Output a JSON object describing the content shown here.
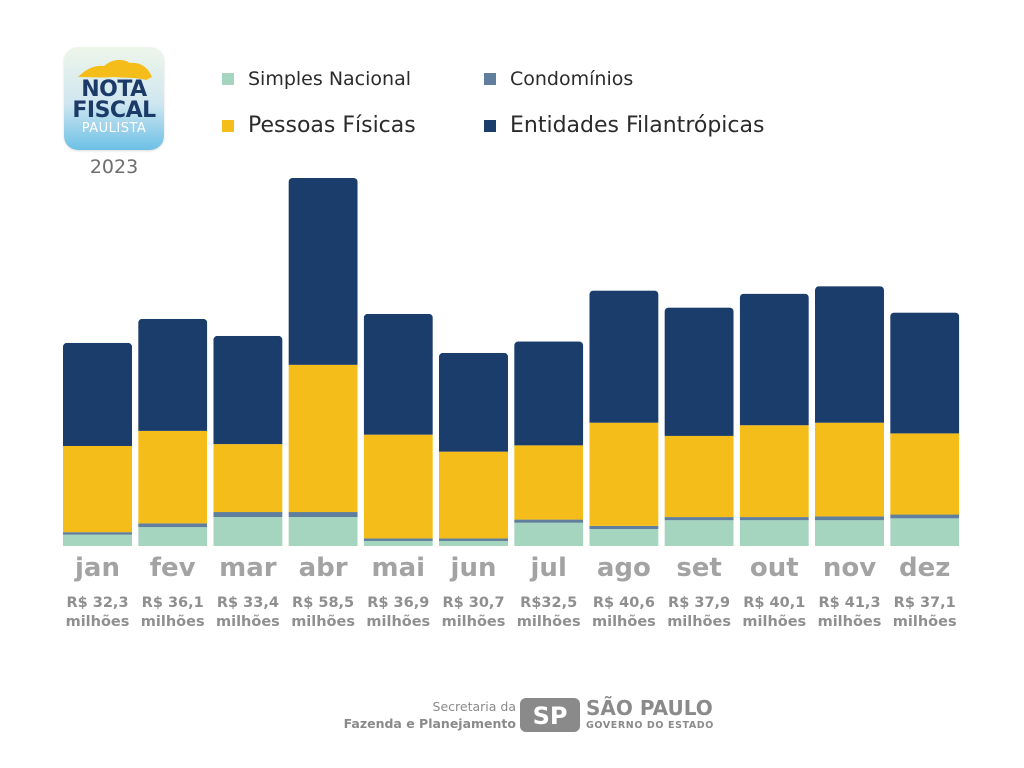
{
  "logo": {
    "line1": "NOTA",
    "line2": "FISCAL",
    "line3": "PAULISTA",
    "year": "2023"
  },
  "colors": {
    "simples": "#a5d5bf",
    "condominios": "#5f7f9d",
    "pessoas": "#f5bd1a",
    "entidades": "#1a3d6b",
    "text_muted": "#a3a3a3"
  },
  "legend": [
    {
      "key": "simples",
      "label": "Simples Nacional",
      "icon": "square-swatch-icon"
    },
    {
      "key": "condominios",
      "label": "Condomínios",
      "icon": "square-swatch-icon"
    },
    {
      "key": "pessoas",
      "label": "Pessoas Físicas",
      "icon": "square-swatch-icon"
    },
    {
      "key": "entidades",
      "label": "Entidades Filantrópicas",
      "icon": "square-swatch-icon"
    }
  ],
  "chart_data": {
    "type": "bar",
    "stacked": true,
    "title": "",
    "xlabel": "",
    "ylabel": "",
    "ylim": [
      0,
      60
    ],
    "grid": false,
    "legend_position": "top",
    "categories": [
      "jan",
      "fev",
      "mar",
      "abr",
      "mai",
      "jun",
      "jul",
      "ago",
      "set",
      "out",
      "nov",
      "dez"
    ],
    "value_labels": [
      [
        "R$ 32,3",
        "milhões"
      ],
      [
        "R$ 36,1",
        "milhões"
      ],
      [
        "R$ 33,4",
        "milhões"
      ],
      [
        "R$ 58,5",
        "milhões"
      ],
      [
        "R$ 36,9",
        "milhões"
      ],
      [
        "R$ 30,7",
        "milhões"
      ],
      [
        "R$32,5",
        "milhões"
      ],
      [
        "R$ 40,6",
        "milhões"
      ],
      [
        "R$ 37,9",
        "milhões"
      ],
      [
        "R$ 40,1",
        "milhões"
      ],
      [
        "R$ 41,3",
        "milhões"
      ],
      [
        "R$ 37,1",
        "milhões"
      ]
    ],
    "totals": [
      32.3,
      36.1,
      33.4,
      58.5,
      36.9,
      30.7,
      32.5,
      40.6,
      37.9,
      40.1,
      41.3,
      37.1
    ],
    "series": [
      {
        "name": "Simples Nacional",
        "key": "simples",
        "values": [
          1.8,
          3.0,
          4.6,
          4.6,
          0.8,
          0.8,
          3.7,
          2.7,
          4.1,
          4.1,
          4.1,
          4.4
        ]
      },
      {
        "name": "Condomínios",
        "key": "condominios",
        "values": [
          0.4,
          0.6,
          0.8,
          0.8,
          0.4,
          0.4,
          0.5,
          0.5,
          0.5,
          0.5,
          0.6,
          0.6
        ]
      },
      {
        "name": "Pessoas Físicas",
        "key": "pessoas",
        "values": [
          13.7,
          14.7,
          10.8,
          23.4,
          16.5,
          13.8,
          11.8,
          16.4,
          12.9,
          14.6,
          14.9,
          12.9
        ]
      },
      {
        "name": "Entidades Filantrópicas",
        "key": "entidades",
        "values": [
          16.4,
          17.8,
          17.2,
          29.7,
          19.2,
          15.7,
          16.5,
          21.0,
          20.4,
          20.9,
          21.7,
          19.2
        ]
      }
    ]
  },
  "footer": {
    "secretaria": "Secretaria da",
    "fazenda": "Fazenda e Planejamento",
    "sp_mark": "SP",
    "sao_paulo": "SÃO PAULO",
    "governo": "GOVERNO DO ESTADO"
  }
}
